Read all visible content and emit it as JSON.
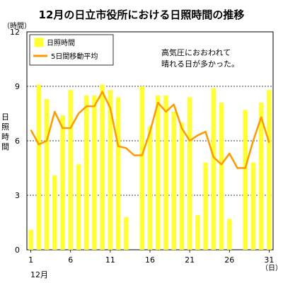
{
  "chart_data": {
    "type": "bar",
    "title": "12月の日立市役所における日照時間の推移",
    "y_unit": "（時間）",
    "ylabel": "日照時間",
    "x_unit": "（日）",
    "x_month": "12月",
    "ylim": [
      0,
      12
    ],
    "yticks": [
      0,
      3,
      6,
      9,
      12
    ],
    "xticks": [
      1,
      6,
      11,
      16,
      21,
      26,
      31
    ],
    "grid": "dotted horizontal at 3, 9",
    "legend_position": "top-left",
    "annotation": [
      "高気圧におおわれて",
      "晴れる日が多かった。"
    ],
    "x": [
      1,
      2,
      3,
      4,
      5,
      6,
      7,
      8,
      9,
      10,
      11,
      12,
      13,
      14,
      15,
      16,
      17,
      18,
      19,
      20,
      21,
      22,
      23,
      24,
      25,
      26,
      27,
      28,
      29,
      30,
      31
    ],
    "series": [
      {
        "name": "日照時間",
        "kind": "bar",
        "color": "#ffff33",
        "values": [
          1.1,
          9.1,
          8.3,
          4.1,
          7.4,
          8.8,
          4.7,
          8.5,
          8.5,
          9.1,
          8.8,
          8.4,
          1.8,
          0,
          9.0,
          6.8,
          8.5,
          8.5,
          7.6,
          7.0,
          8.4,
          1.9,
          4.8,
          8.9,
          8.1,
          1.7,
          0,
          7.7,
          4.8,
          8.1,
          8.8
        ]
      },
      {
        "name": "5日間移動平均",
        "kind": "line",
        "color": "#ff9900",
        "values": [
          6.6,
          5.8,
          6.0,
          7.6,
          6.7,
          6.7,
          7.5,
          7.9,
          7.9,
          8.7,
          7.8,
          5.7,
          5.6,
          5.2,
          5.2,
          6.5,
          8.1,
          7.6,
          8.0,
          6.7,
          6.0,
          6.3,
          6.5,
          5.1,
          4.7,
          5.3,
          4.5,
          4.5,
          6.0,
          7.3,
          5.9
        ]
      }
    ]
  }
}
